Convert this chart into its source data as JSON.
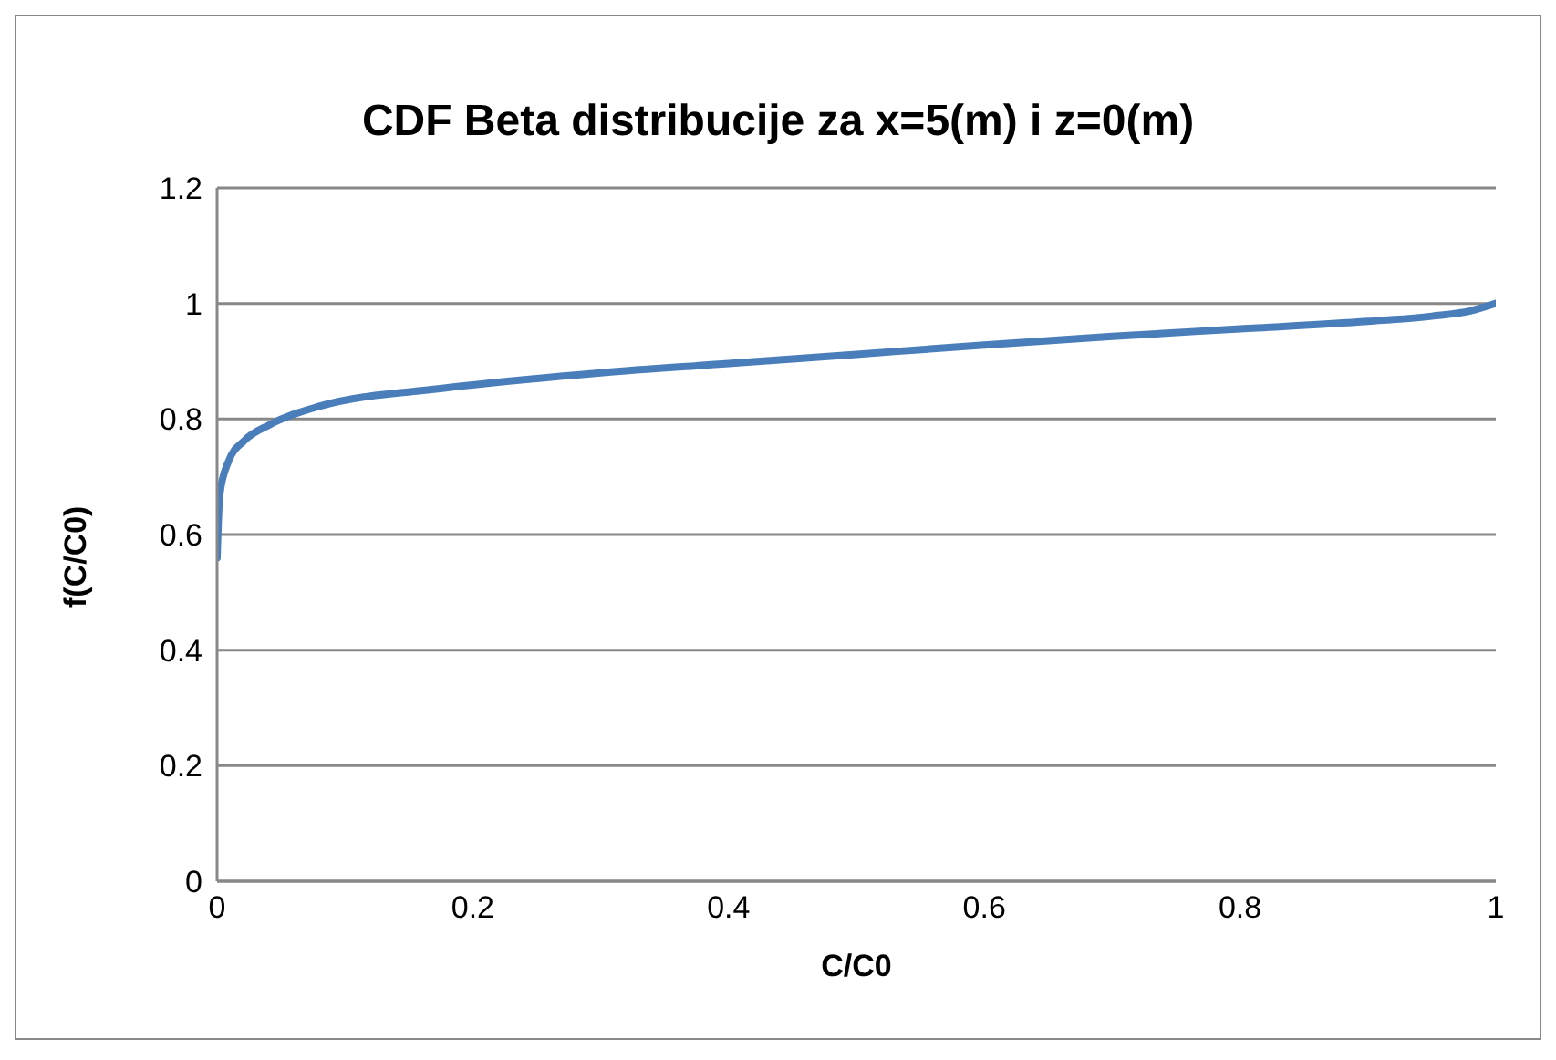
{
  "chart_data": {
    "type": "line",
    "title": "CDF Beta distribucije za x=5(m) i z=0(m)",
    "xlabel": "C/C0",
    "ylabel": "f(C/C0)",
    "x": [
      0,
      0.002,
      0.009,
      0.021,
      0.041,
      0.08,
      0.176,
      0.3,
      0.4,
      0.5,
      0.6,
      0.7,
      0.8,
      0.9,
      0.95,
      0.98,
      1
    ],
    "series": [
      {
        "color": "#4a7ebb",
        "values": [
          0.56,
          0.668,
          0.727,
          0.762,
          0.79,
          0.822,
          0.853,
          0.88,
          0.896,
          0.912,
          0.928,
          0.943,
          0.956,
          0.969,
          0.978,
          0.987,
          1
        ]
      }
    ],
    "xlim": [
      0,
      1
    ],
    "xticks": [
      0,
      0.2,
      0.4,
      0.6,
      0.8,
      1
    ],
    "ylim": [
      0,
      1.2
    ],
    "yticks": [
      0,
      0.2,
      0.4,
      0.6,
      0.8,
      1,
      1.2
    ],
    "grid": "y",
    "legend": false,
    "marker": "none",
    "line_style": "solid"
  }
}
